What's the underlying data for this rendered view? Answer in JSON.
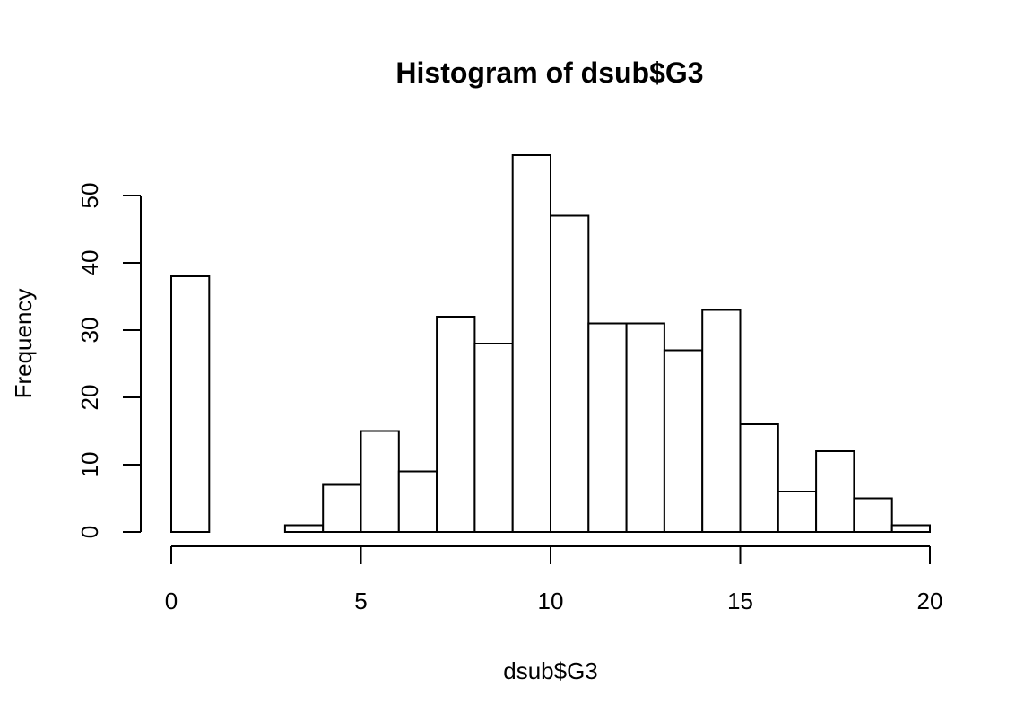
{
  "chart_data": {
    "type": "bar",
    "title": "Histogram of dsub$G3",
    "xlabel": "dsub$G3",
    "ylabel": "Frequency",
    "bin_edges": [
      0,
      1,
      2,
      3,
      4,
      5,
      6,
      7,
      8,
      9,
      10,
      11,
      12,
      13,
      14,
      15,
      16,
      17,
      18,
      19,
      20
    ],
    "values": [
      38,
      0,
      0,
      1,
      7,
      15,
      9,
      32,
      28,
      56,
      47,
      31,
      31,
      27,
      33,
      16,
      6,
      12,
      5,
      1
    ],
    "xlim": [
      0,
      20
    ],
    "ylim": [
      0,
      56
    ],
    "x_ticks": [
      0,
      5,
      10,
      15,
      20
    ],
    "y_ticks": [
      0,
      10,
      20,
      30,
      40,
      50
    ],
    "x_tick_labels": [
      "0",
      "5",
      "10",
      "15",
      "20"
    ],
    "y_tick_labels": [
      "0",
      "10",
      "20",
      "30",
      "40",
      "50"
    ],
    "grid": false,
    "colors": {
      "bar_fill": "#ffffff",
      "bar_stroke": "#000000"
    }
  }
}
